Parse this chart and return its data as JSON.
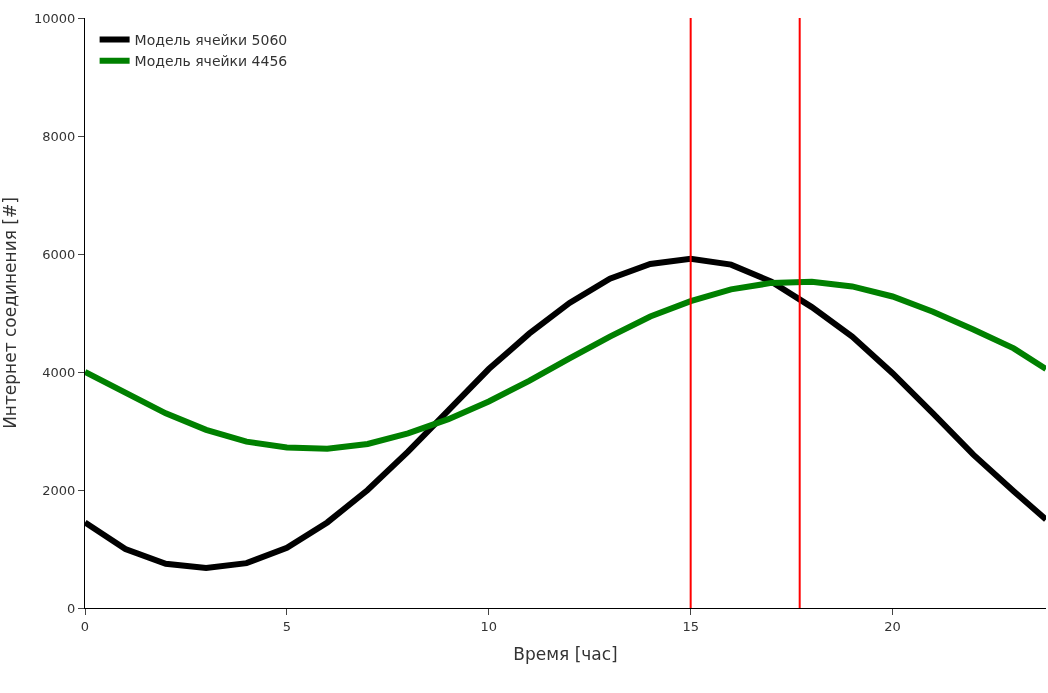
{
  "chart_data": {
    "type": "line",
    "xlabel": "Время [час]",
    "ylabel": "Интернет соединения [#]",
    "x": [
      0,
      1,
      2,
      3,
      4,
      5,
      6,
      7,
      8,
      9,
      10,
      11,
      12,
      13,
      14,
      15,
      16,
      17,
      18,
      19,
      20,
      21,
      22,
      23,
      23.8
    ],
    "series": [
      {
        "name": "Модель ячейки 5060",
        "color": "#000000",
        "values": [
          1450,
          1000,
          750,
          680,
          760,
          1020,
          1450,
          2000,
          2650,
          3350,
          4050,
          4650,
          5170,
          5580,
          5830,
          5920,
          5820,
          5530,
          5100,
          4600,
          3980,
          3300,
          2600,
          1980,
          1500
        ]
      },
      {
        "name": "Модель ячейки 4456",
        "color": "#008000",
        "values": [
          4000,
          3650,
          3300,
          3020,
          2820,
          2720,
          2700,
          2780,
          2960,
          3200,
          3500,
          3850,
          4230,
          4600,
          4940,
          5200,
          5400,
          5510,
          5530,
          5450,
          5280,
          5020,
          4720,
          4400,
          4050
        ]
      }
    ],
    "ref_lines": [
      {
        "axis": "x",
        "value": 15,
        "color": "#ff0000"
      },
      {
        "axis": "x",
        "value": 17.7,
        "color": "#ff0000"
      }
    ],
    "xlim": [
      0,
      23.8
    ],
    "xticks": [
      0,
      5,
      10,
      15,
      20
    ],
    "ylim": [
      0,
      10000
    ],
    "yticks": [
      0,
      2000,
      4000,
      6000,
      8000,
      10000
    ],
    "legend": "top left",
    "marker": "none",
    "line_style": "solid"
  }
}
